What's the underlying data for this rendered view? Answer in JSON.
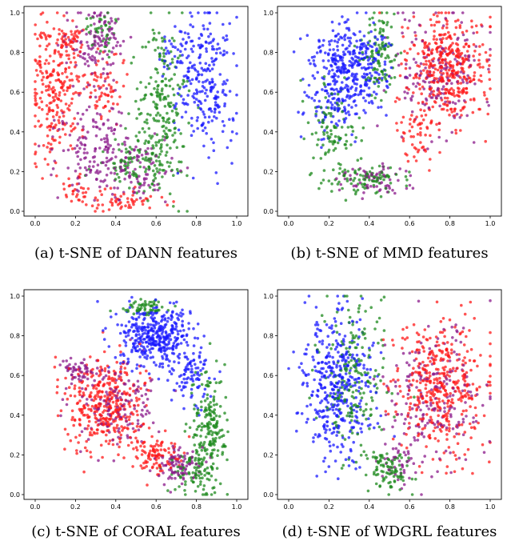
{
  "colors": {
    "red": "#ff1a1a",
    "green": "#1e8a1e",
    "blue": "#1a1aff",
    "purple": "#8b1a8b"
  },
  "chart_data": [
    {
      "type": "scatter",
      "caption": "(a) t-SNE of DANN features",
      "xlim": [
        0,
        1
      ],
      "ylim": [
        0,
        1
      ],
      "xticks": [
        "0.0",
        "0.2",
        "0.4",
        "0.6",
        "0.8",
        "1.0"
      ],
      "yticks": [
        "0.0",
        "0.2",
        "0.4",
        "0.6",
        "0.8",
        "1.0"
      ],
      "grid": false,
      "series": [
        {
          "color": "red",
          "clusters": [
            {
              "cx": 0.1,
              "cy": 0.62,
              "sx": 0.06,
              "sy": 0.18,
              "n": 240
            },
            {
              "cx": 0.18,
              "cy": 0.88,
              "sx": 0.03,
              "sy": 0.04,
              "n": 40
            },
            {
              "cx": 0.34,
              "cy": 0.62,
              "sx": 0.06,
              "sy": 0.1,
              "n": 70
            },
            {
              "cx": 0.42,
              "cy": 0.05,
              "sx": 0.12,
              "sy": 0.03,
              "n": 60
            },
            {
              "cx": 0.18,
              "cy": 0.12,
              "sx": 0.06,
              "sy": 0.04,
              "n": 25
            }
          ]
        },
        {
          "color": "purple",
          "clusters": [
            {
              "cx": 0.3,
              "cy": 0.85,
              "sx": 0.07,
              "sy": 0.1,
              "n": 130
            },
            {
              "cx": 0.3,
              "cy": 0.3,
              "sx": 0.09,
              "sy": 0.12,
              "n": 150
            },
            {
              "cx": 0.5,
              "cy": 0.22,
              "sx": 0.1,
              "sy": 0.07,
              "n": 90
            }
          ]
        },
        {
          "color": "green",
          "clusters": [
            {
              "cx": 0.63,
              "cy": 0.55,
              "sx": 0.06,
              "sy": 0.2,
              "n": 210
            },
            {
              "cx": 0.5,
              "cy": 0.25,
              "sx": 0.1,
              "sy": 0.08,
              "n": 110
            },
            {
              "cx": 0.33,
              "cy": 0.92,
              "sx": 0.04,
              "sy": 0.05,
              "n": 40
            }
          ]
        },
        {
          "color": "blue",
          "clusters": [
            {
              "cx": 0.85,
              "cy": 0.62,
              "sx": 0.07,
              "sy": 0.18,
              "n": 230
            },
            {
              "cx": 0.72,
              "cy": 0.8,
              "sx": 0.05,
              "sy": 0.07,
              "n": 50
            }
          ]
        }
      ]
    },
    {
      "type": "scatter",
      "caption": "(b) t-SNE of MMD features",
      "xlim": [
        0,
        1
      ],
      "ylim": [
        0,
        1
      ],
      "xticks": [
        "0.0",
        "0.2",
        "0.4",
        "0.6",
        "0.8",
        "1.0"
      ],
      "yticks": [
        "0.0",
        "0.2",
        "0.4",
        "0.6",
        "0.8",
        "1.0"
      ],
      "grid": false,
      "series": [
        {
          "color": "blue",
          "clusters": [
            {
              "cx": 0.3,
              "cy": 0.72,
              "sx": 0.09,
              "sy": 0.12,
              "n": 380
            },
            {
              "cx": 0.2,
              "cy": 0.5,
              "sx": 0.06,
              "sy": 0.08,
              "n": 60
            }
          ]
        },
        {
          "color": "green",
          "clusters": [
            {
              "cx": 0.45,
              "cy": 0.8,
              "sx": 0.05,
              "sy": 0.1,
              "n": 110
            },
            {
              "cx": 0.22,
              "cy": 0.4,
              "sx": 0.07,
              "sy": 0.12,
              "n": 100
            },
            {
              "cx": 0.4,
              "cy": 0.16,
              "sx": 0.08,
              "sy": 0.04,
              "n": 90
            }
          ]
        },
        {
          "color": "red",
          "clusters": [
            {
              "cx": 0.78,
              "cy": 0.72,
              "sx": 0.1,
              "sy": 0.13,
              "n": 420
            },
            {
              "cx": 0.62,
              "cy": 0.4,
              "sx": 0.06,
              "sy": 0.08,
              "n": 50
            }
          ]
        },
        {
          "color": "purple",
          "clusters": [
            {
              "cx": 0.75,
              "cy": 0.7,
              "sx": 0.12,
              "sy": 0.15,
              "n": 180
            },
            {
              "cx": 0.42,
              "cy": 0.15,
              "sx": 0.08,
              "sy": 0.04,
              "n": 70
            }
          ]
        }
      ]
    },
    {
      "type": "scatter",
      "caption": "(c) t-SNE of CORAL features",
      "xlim": [
        0,
        1
      ],
      "ylim": [
        0,
        1
      ],
      "xticks": [
        "0.0",
        "0.2",
        "0.4",
        "0.6",
        "0.8",
        "1.0"
      ],
      "yticks": [
        "0.0",
        "0.2",
        "0.4",
        "0.6",
        "0.8",
        "1.0"
      ],
      "grid": false,
      "series": [
        {
          "color": "blue",
          "clusters": [
            {
              "cx": 0.6,
              "cy": 0.8,
              "sx": 0.09,
              "sy": 0.08,
              "n": 400
            },
            {
              "cx": 0.78,
              "cy": 0.6,
              "sx": 0.05,
              "sy": 0.07,
              "n": 80
            }
          ]
        },
        {
          "color": "green",
          "clusters": [
            {
              "cx": 0.55,
              "cy": 0.94,
              "sx": 0.06,
              "sy": 0.02,
              "n": 60
            },
            {
              "cx": 0.86,
              "cy": 0.35,
              "sx": 0.04,
              "sy": 0.14,
              "n": 200
            },
            {
              "cx": 0.78,
              "cy": 0.12,
              "sx": 0.05,
              "sy": 0.05,
              "n": 80
            }
          ]
        },
        {
          "color": "red",
          "clusters": [
            {
              "cx": 0.35,
              "cy": 0.45,
              "sx": 0.1,
              "sy": 0.12,
              "n": 380
            },
            {
              "cx": 0.6,
              "cy": 0.2,
              "sx": 0.06,
              "sy": 0.05,
              "n": 100
            }
          ]
        },
        {
          "color": "purple",
          "clusters": [
            {
              "cx": 0.22,
              "cy": 0.63,
              "sx": 0.04,
              "sy": 0.03,
              "n": 50
            },
            {
              "cx": 0.4,
              "cy": 0.45,
              "sx": 0.1,
              "sy": 0.1,
              "n": 150
            },
            {
              "cx": 0.7,
              "cy": 0.15,
              "sx": 0.06,
              "sy": 0.05,
              "n": 90
            }
          ]
        }
      ]
    },
    {
      "type": "scatter",
      "caption": "(d) t-SNE of WDGRL features",
      "xlim": [
        0,
        1
      ],
      "ylim": [
        0,
        1
      ],
      "xticks": [
        "0.0",
        "0.2",
        "0.4",
        "0.6",
        "0.8",
        "1.0"
      ],
      "yticks": [
        "0.0",
        "0.2",
        "0.4",
        "0.6",
        "0.8",
        "1.0"
      ],
      "grid": false,
      "series": [
        {
          "color": "blue",
          "clusters": [
            {
              "cx": 0.25,
              "cy": 0.55,
              "sx": 0.09,
              "sy": 0.18,
              "n": 420
            }
          ]
        },
        {
          "color": "green",
          "clusters": [
            {
              "cx": 0.32,
              "cy": 0.6,
              "sx": 0.08,
              "sy": 0.2,
              "n": 200
            },
            {
              "cx": 0.5,
              "cy": 0.12,
              "sx": 0.05,
              "sy": 0.05,
              "n": 90
            }
          ]
        },
        {
          "color": "red",
          "clusters": [
            {
              "cx": 0.76,
              "cy": 0.55,
              "sx": 0.11,
              "sy": 0.17,
              "n": 420
            }
          ]
        },
        {
          "color": "purple",
          "clusters": [
            {
              "cx": 0.72,
              "cy": 0.5,
              "sx": 0.12,
              "sy": 0.17,
              "n": 200
            },
            {
              "cx": 0.55,
              "cy": 0.15,
              "sx": 0.04,
              "sy": 0.05,
              "n": 40
            }
          ]
        }
      ]
    }
  ]
}
